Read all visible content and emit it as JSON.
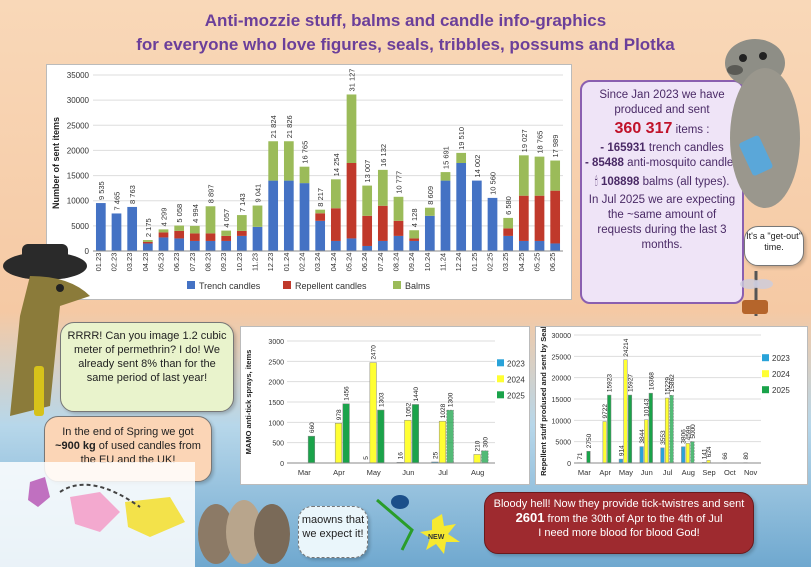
{
  "title": {
    "line1": "Anti-mozzie stuff, balms and candle info-graphics",
    "line2": "for everyone who love figures, seals, tribbles, possums and Plotka"
  },
  "colors": {
    "trench": "#4472c4",
    "repellent": "#c0392b",
    "balms": "#9bbb59",
    "y2023": "#29a3d9",
    "y2024": "#ffff33",
    "y2025": "#1aa34a"
  },
  "stats_box": {
    "line1": "Since Jan 2023 we have produced and sent",
    "total": "360 317",
    "total_suffix": "items :",
    "trench_num": "- 165931",
    "trench_label": "trench candles",
    "anti_num": "- 85488",
    "anti_label": "anti-mosquito candles",
    "balms_num": "108898",
    "balms_label": "balms (all types).",
    "outlook": "In Jul 2025 we are expecting the ~same amount of requests during the last 3 months."
  },
  "bubbles": {
    "get_out": "It's a \"get-out\" time.",
    "dino": "RRRR! Can you image 1.2 cubic meter of permethrin? I do! We already sent 8% than for the same period of last year!",
    "candles_pre": "In the end of Spring we got",
    "candles_bold": "~900 kg",
    "candles_post": "of used candles from the EU and the UK!",
    "cats": "maowns that we expect it!",
    "new_badge": "NEW",
    "blood_line1": "Bloody hell! Now they provide tick-twistres and sent",
    "blood_num": "2601",
    "blood_line2": "from the 30th of Apr to the 4th of Jul",
    "blood_line3": "I need more blood for blood God!"
  },
  "chart_data": [
    {
      "type": "bar",
      "stacked": true,
      "ylabel": "Number of sent items",
      "ylim": [
        0,
        35000
      ],
      "yticks": [
        "0",
        "5000",
        "10000",
        "15000",
        "20000",
        "25000",
        "30000",
        "35000"
      ],
      "categories": [
        "01.23",
        "02.23",
        "03.23",
        "04.23",
        "05.23",
        "06.23",
        "07.23",
        "08.23",
        "09.23",
        "10.23",
        "11.23",
        "12.23",
        "01.24",
        "02.24",
        "03.24",
        "04.24",
        "05.24",
        "06.24",
        "07.24",
        "08.24",
        "09.24",
        "10.24",
        "11.24",
        "12.24",
        "01.25",
        "02.25",
        "03.25",
        "04.25",
        "05.25",
        "06.25"
      ],
      "totals": [
        "9 535",
        "7 465",
        "8 763",
        "2 175",
        "4 299",
        "5 058",
        "4 994",
        "8 897",
        "4 057",
        "7 143",
        "9 041",
        "21 824",
        "21 826",
        "16 765",
        "8 217",
        "14 254",
        "31 127",
        "13 007",
        "16 132",
        "10 777",
        "4 128",
        "8 609",
        "15 691",
        "19 510",
        "14 002",
        "10 560",
        "6 580",
        "19 027",
        "18 765",
        "17 989"
      ],
      "series": [
        {
          "name": "Trench candles",
          "values": [
            9535,
            7465,
            8763,
            1500,
            2700,
            2500,
            2000,
            2000,
            2000,
            3000,
            4800,
            14000,
            14000,
            13500,
            6000,
            2000,
            2500,
            1000,
            2000,
            3000,
            2000,
            7000,
            14000,
            17500,
            14002,
            10560,
            3000,
            2000,
            2000,
            1500
          ]
        },
        {
          "name": "Repellent candles",
          "values": [
            0,
            0,
            0,
            300,
            1000,
            1500,
            1500,
            1500,
            1000,
            1000,
            0,
            0,
            0,
            0,
            1500,
            6500,
            15000,
            6000,
            7000,
            3000,
            500,
            0,
            0,
            0,
            0,
            0,
            1500,
            9000,
            9000,
            10500
          ]
        },
        {
          "name": "Balms",
          "values": [
            0,
            0,
            0,
            375,
            599,
            1058,
            1494,
            5397,
            1057,
            3143,
            4241,
            7824,
            7826,
            3265,
            717,
            5754,
            13627,
            6007,
            7132,
            4777,
            1628,
            1609,
            1691,
            2010,
            0,
            0,
            2080,
            8027,
            7765,
            5989
          ]
        }
      ],
      "legend": "bottom"
    },
    {
      "type": "bar",
      "ylabel": "MAMO anti-tick sprays, items",
      "ylim": [
        0,
        3000
      ],
      "yticks": [
        "0",
        "500",
        "1000",
        "1500",
        "2000",
        "2500",
        "3000"
      ],
      "categories": [
        "Mar",
        "Apr",
        "May",
        "Jun",
        "Jul",
        "Aug"
      ],
      "series": [
        {
          "name": "2023",
          "values": [
            0,
            0,
            5,
            16,
            25,
            0
          ]
        },
        {
          "name": "2024",
          "values": [
            0,
            978,
            2470,
            1052,
            1028,
            210
          ]
        },
        {
          "name": "2025",
          "values": [
            660,
            1456,
            1303,
            1440,
            1300,
            300
          ]
        }
      ],
      "labels": {
        "2023": [
          "",
          "",
          "5",
          "16",
          "25",
          ""
        ],
        "2024": [
          "",
          "978",
          "2470",
          "1052",
          "1028",
          "210"
        ],
        "2025": [
          "660",
          "1456",
          "1303",
          "1440",
          "1300",
          "300"
        ]
      },
      "legend": "right"
    },
    {
      "type": "bar",
      "ylabel": "Repellent stuff prodused and sent by Seals",
      "ylim": [
        0,
        30000
      ],
      "yticks": [
        "0",
        "5000",
        "10000",
        "15000",
        "20000",
        "25000",
        "30000"
      ],
      "categories": [
        "Mar",
        "Apr",
        "May",
        "Jun",
        "Jul",
        "Aug",
        "Sep",
        "Oct",
        "Nov"
      ],
      "series": [
        {
          "name": "2023",
          "values": [
            71,
            0,
            914,
            3844,
            3553,
            3806,
            141,
            66,
            80
          ]
        },
        {
          "name": "2024",
          "values": [
            0,
            9722,
            24214,
            10143,
            15229,
            4599,
            624,
            0,
            0
          ]
        },
        {
          "name": "2025",
          "values": [
            2750,
            15923,
            15927,
            16368,
            15862,
            5000,
            0,
            0,
            0
          ]
        }
      ],
      "labels": {
        "2023": [
          "71",
          "",
          "914",
          "3844",
          "3553",
          "3806",
          "141",
          "66",
          "80"
        ],
        "2024": [
          "",
          "9722",
          "24214",
          "10143",
          "15229",
          "4599",
          "624",
          "",
          ""
        ],
        "2025": [
          "2750",
          "15923",
          "15927",
          "16368",
          "15862",
          "5000",
          "",
          "",
          ""
        ]
      },
      "legend": "right"
    }
  ]
}
